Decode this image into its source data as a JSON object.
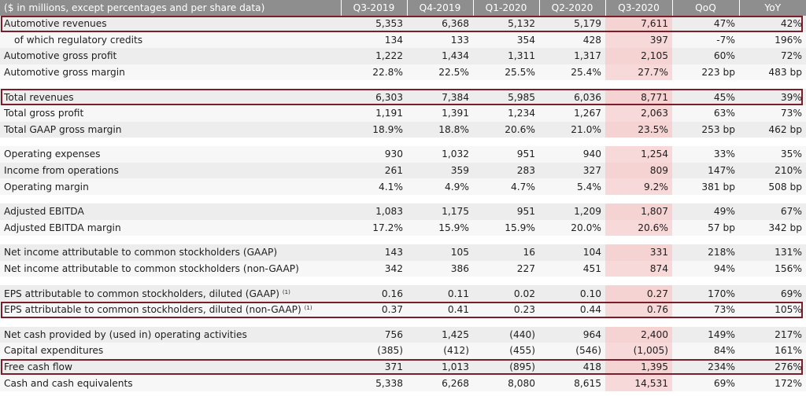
{
  "header": {
    "label": "($ in millions, except percentages and per share data)",
    "columns": [
      "Q3-2019",
      "Q4-2019",
      "Q1-2020",
      "Q2-2020",
      "Q3-2020",
      "QoQ",
      "YoY"
    ]
  },
  "rows": [
    {
      "label": "Automotive revenues",
      "values": [
        "5,353",
        "6,368",
        "5,132",
        "5,179",
        "7,611",
        "47%",
        "42%"
      ]
    },
    {
      "label": "of which regulatory credits",
      "values": [
        "134",
        "133",
        "354",
        "428",
        "397",
        "-7%",
        "196%"
      ]
    },
    {
      "label": "Automotive gross profit",
      "values": [
        "1,222",
        "1,434",
        "1,311",
        "1,317",
        "2,105",
        "60%",
        "72%"
      ]
    },
    {
      "label": "Automotive gross margin",
      "values": [
        "22.8%",
        "22.5%",
        "25.5%",
        "25.4%",
        "27.7%",
        "223 bp",
        "483 bp"
      ]
    },
    {
      "label": "Total revenues",
      "values": [
        "6,303",
        "7,384",
        "5,985",
        "6,036",
        "8,771",
        "45%",
        "39%"
      ]
    },
    {
      "label": "Total gross profit",
      "values": [
        "1,191",
        "1,391",
        "1,234",
        "1,267",
        "2,063",
        "63%",
        "73%"
      ]
    },
    {
      "label": "Total GAAP gross margin",
      "values": [
        "18.9%",
        "18.8%",
        "20.6%",
        "21.0%",
        "23.5%",
        "253 bp",
        "462 bp"
      ]
    },
    {
      "label": "Operating expenses",
      "values": [
        "930",
        "1,032",
        "951",
        "940",
        "1,254",
        "33%",
        "35%"
      ]
    },
    {
      "label": "Income from operations",
      "values": [
        "261",
        "359",
        "283",
        "327",
        "809",
        "147%",
        "210%"
      ]
    },
    {
      "label": "Operating margin",
      "values": [
        "4.1%",
        "4.9%",
        "4.7%",
        "5.4%",
        "9.2%",
        "381 bp",
        "508 bp"
      ]
    },
    {
      "label": "Adjusted EBITDA",
      "values": [
        "1,083",
        "1,175",
        "951",
        "1,209",
        "1,807",
        "49%",
        "67%"
      ]
    },
    {
      "label": "Adjusted EBITDA margin",
      "values": [
        "17.2%",
        "15.9%",
        "15.9%",
        "20.0%",
        "20.6%",
        "57 bp",
        "342 bp"
      ]
    },
    {
      "label": "Net income attributable to common stockholders (GAAP)",
      "values": [
        "143",
        "105",
        "16",
        "104",
        "331",
        "218%",
        "131%"
      ]
    },
    {
      "label": "Net income attributable to common stockholders (non-GAAP)",
      "values": [
        "342",
        "386",
        "227",
        "451",
        "874",
        "94%",
        "156%"
      ]
    },
    {
      "label": "EPS attributable to common stockholders, diluted (GAAP)",
      "footnote": "(1)",
      "values": [
        "0.16",
        "0.11",
        "0.02",
        "0.10",
        "0.27",
        "170%",
        "69%"
      ]
    },
    {
      "label": "EPS attributable to common stockholders, diluted (non-GAAP)",
      "footnote": "(1)",
      "values": [
        "0.37",
        "0.41",
        "0.23",
        "0.44",
        "0.76",
        "73%",
        "105%"
      ]
    },
    {
      "label": "Net cash provided by (used in) operating activities",
      "values": [
        "756",
        "1,425",
        "(440)",
        "964",
        "2,400",
        "149%",
        "217%"
      ]
    },
    {
      "label": "Capital expenditures",
      "values": [
        "(385)",
        "(412)",
        "(455)",
        "(546)",
        "(1,005)",
        "84%",
        "161%"
      ]
    },
    {
      "label": "Free cash flow",
      "values": [
        "371",
        "1,013",
        "(895)",
        "418",
        "1,395",
        "234%",
        "276%"
      ]
    },
    {
      "label": "Cash and cash equivalents",
      "values": [
        "5,338",
        "6,268",
        "8,080",
        "8,615",
        "14,531",
        "69%",
        "172%"
      ]
    }
  ]
}
